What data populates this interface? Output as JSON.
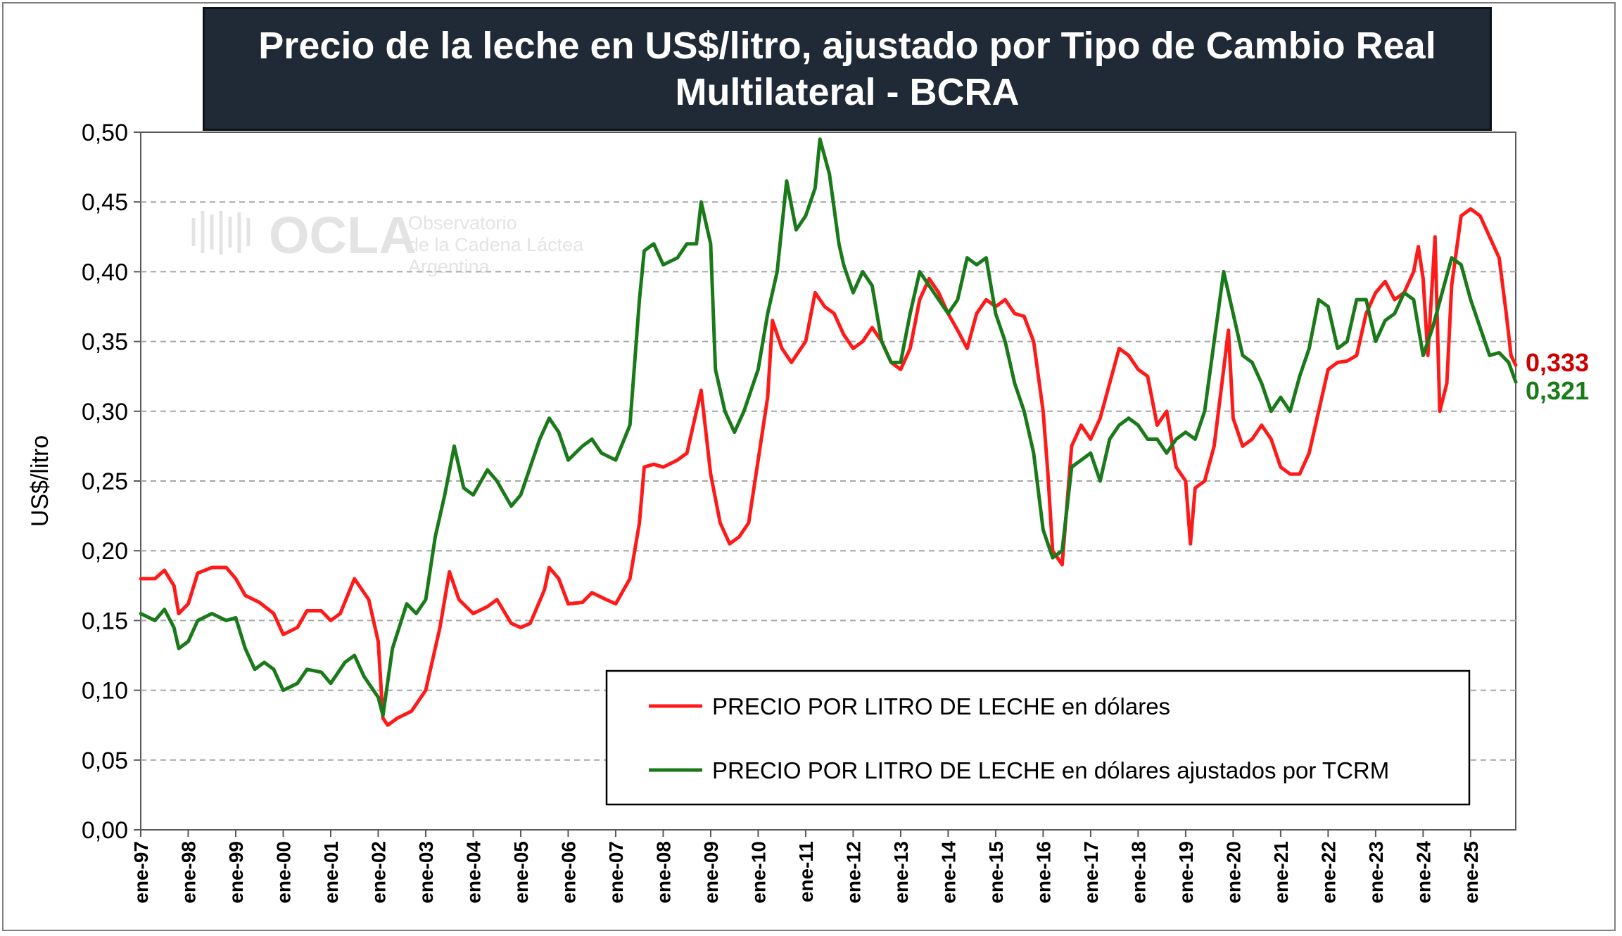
{
  "watermark": {
    "logo_text": "OCLA",
    "line1": "Observatorio",
    "line2": "de la Cadena Láctea",
    "line3": "Argentina"
  },
  "colors": {
    "usd": "#ff1a1a",
    "tcrm": "#1a7a1a",
    "title_bg": "#1f2a36",
    "grid": "#a6a6a6"
  },
  "chart_data": {
    "type": "line",
    "title_line1": "Precio de la leche en US$/litro, ajustado por Tipo de Cambio Real",
    "title_line2": "Multilateral  - BCRA",
    "ylabel": "US$/litro",
    "xlabel": "",
    "ylim": [
      0,
      0.5
    ],
    "yticks": [
      "0,00",
      "0,05",
      "0,10",
      "0,15",
      "0,20",
      "0,25",
      "0,30",
      "0,35",
      "0,40",
      "0,45",
      "0,50"
    ],
    "x_start": 1997.0,
    "x_end": 2025.95,
    "xtick_labels": [
      "ene-97",
      "ene-98",
      "ene-99",
      "ene-00",
      "ene-01",
      "ene-02",
      "ene-03",
      "ene-04",
      "ene-05",
      "ene-06",
      "ene-07",
      "ene-08",
      "ene-09",
      "ene-10",
      "ene-11",
      "ene-12",
      "ene-13",
      "ene-14",
      "ene-15",
      "ene-16",
      "ene-17",
      "ene-18",
      "ene-19",
      "ene-20",
      "ene-21",
      "ene-22",
      "ene-23",
      "ene-24",
      "ene-25"
    ],
    "legend": [
      "PRECIO POR LITRO DE LECHE en dólares",
      "PRECIO POR LITRO DE LECHE en dólares ajustados por TCRM"
    ],
    "legend_position": "bottom-right",
    "end_labels": [
      "0,333",
      "0,321"
    ],
    "series": [
      {
        "name": "PRECIO POR LITRO DE LECHE en dólares",
        "points": [
          [
            1997.0,
            0.18
          ],
          [
            1997.3,
            0.18
          ],
          [
            1997.5,
            0.186
          ],
          [
            1997.7,
            0.175
          ],
          [
            1997.8,
            0.155
          ],
          [
            1998.0,
            0.162
          ],
          [
            1998.2,
            0.184
          ],
          [
            1998.5,
            0.188
          ],
          [
            1998.8,
            0.188
          ],
          [
            1999.0,
            0.18
          ],
          [
            1999.2,
            0.168
          ],
          [
            1999.5,
            0.163
          ],
          [
            1999.8,
            0.155
          ],
          [
            2000.0,
            0.14
          ],
          [
            2000.3,
            0.145
          ],
          [
            2000.5,
            0.157
          ],
          [
            2000.8,
            0.157
          ],
          [
            2001.0,
            0.15
          ],
          [
            2001.2,
            0.155
          ],
          [
            2001.5,
            0.18
          ],
          [
            2001.8,
            0.165
          ],
          [
            2002.0,
            0.135
          ],
          [
            2002.1,
            0.08
          ],
          [
            2002.2,
            0.075
          ],
          [
            2002.4,
            0.08
          ],
          [
            2002.7,
            0.085
          ],
          [
            2003.0,
            0.1
          ],
          [
            2003.3,
            0.145
          ],
          [
            2003.5,
            0.185
          ],
          [
            2003.7,
            0.165
          ],
          [
            2004.0,
            0.155
          ],
          [
            2004.3,
            0.16
          ],
          [
            2004.5,
            0.165
          ],
          [
            2004.8,
            0.148
          ],
          [
            2005.0,
            0.145
          ],
          [
            2005.2,
            0.148
          ],
          [
            2005.5,
            0.172
          ],
          [
            2005.6,
            0.188
          ],
          [
            2005.8,
            0.18
          ],
          [
            2006.0,
            0.162
          ],
          [
            2006.3,
            0.163
          ],
          [
            2006.5,
            0.17
          ],
          [
            2006.8,
            0.165
          ],
          [
            2007.0,
            0.162
          ],
          [
            2007.3,
            0.18
          ],
          [
            2007.5,
            0.22
          ],
          [
            2007.6,
            0.26
          ],
          [
            2007.8,
            0.262
          ],
          [
            2008.0,
            0.26
          ],
          [
            2008.3,
            0.265
          ],
          [
            2008.5,
            0.27
          ],
          [
            2008.7,
            0.3
          ],
          [
            2008.8,
            0.315
          ],
          [
            2009.0,
            0.255
          ],
          [
            2009.2,
            0.22
          ],
          [
            2009.4,
            0.205
          ],
          [
            2009.6,
            0.21
          ],
          [
            2009.8,
            0.22
          ],
          [
            2010.0,
            0.265
          ],
          [
            2010.2,
            0.31
          ],
          [
            2010.3,
            0.365
          ],
          [
            2010.5,
            0.345
          ],
          [
            2010.7,
            0.335
          ],
          [
            2011.0,
            0.35
          ],
          [
            2011.2,
            0.385
          ],
          [
            2011.4,
            0.375
          ],
          [
            2011.6,
            0.37
          ],
          [
            2011.8,
            0.355
          ],
          [
            2012.0,
            0.345
          ],
          [
            2012.2,
            0.35
          ],
          [
            2012.4,
            0.36
          ],
          [
            2012.6,
            0.35
          ],
          [
            2012.8,
            0.335
          ],
          [
            2013.0,
            0.33
          ],
          [
            2013.2,
            0.345
          ],
          [
            2013.4,
            0.38
          ],
          [
            2013.6,
            0.395
          ],
          [
            2013.8,
            0.385
          ],
          [
            2014.0,
            0.37
          ],
          [
            2014.2,
            0.358
          ],
          [
            2014.4,
            0.345
          ],
          [
            2014.6,
            0.37
          ],
          [
            2014.8,
            0.38
          ],
          [
            2015.0,
            0.375
          ],
          [
            2015.2,
            0.38
          ],
          [
            2015.4,
            0.37
          ],
          [
            2015.6,
            0.368
          ],
          [
            2015.8,
            0.35
          ],
          [
            2016.0,
            0.3
          ],
          [
            2016.1,
            0.255
          ],
          [
            2016.2,
            0.2
          ],
          [
            2016.4,
            0.19
          ],
          [
            2016.6,
            0.275
          ],
          [
            2016.8,
            0.29
          ],
          [
            2017.0,
            0.28
          ],
          [
            2017.2,
            0.295
          ],
          [
            2017.4,
            0.32
          ],
          [
            2017.6,
            0.345
          ],
          [
            2017.8,
            0.34
          ],
          [
            2018.0,
            0.33
          ],
          [
            2018.2,
            0.325
          ],
          [
            2018.4,
            0.29
          ],
          [
            2018.6,
            0.3
          ],
          [
            2018.8,
            0.26
          ],
          [
            2019.0,
            0.25
          ],
          [
            2019.1,
            0.205
          ],
          [
            2019.2,
            0.245
          ],
          [
            2019.4,
            0.25
          ],
          [
            2019.6,
            0.275
          ],
          [
            2019.8,
            0.33
          ],
          [
            2019.9,
            0.358
          ],
          [
            2020.0,
            0.295
          ],
          [
            2020.2,
            0.275
          ],
          [
            2020.4,
            0.28
          ],
          [
            2020.6,
            0.29
          ],
          [
            2020.8,
            0.28
          ],
          [
            2021.0,
            0.26
          ],
          [
            2021.2,
            0.255
          ],
          [
            2021.4,
            0.255
          ],
          [
            2021.6,
            0.27
          ],
          [
            2021.8,
            0.3
          ],
          [
            2022.0,
            0.33
          ],
          [
            2022.2,
            0.335
          ],
          [
            2022.4,
            0.336
          ],
          [
            2022.6,
            0.34
          ],
          [
            2022.8,
            0.37
          ],
          [
            2023.0,
            0.385
          ],
          [
            2023.2,
            0.393
          ],
          [
            2023.4,
            0.38
          ],
          [
            2023.6,
            0.385
          ],
          [
            2023.8,
            0.4
          ],
          [
            2023.9,
            0.418
          ],
          [
            2024.0,
            0.395
          ],
          [
            2024.1,
            0.34
          ],
          [
            2024.25,
            0.425
          ],
          [
            2024.35,
            0.3
          ],
          [
            2024.5,
            0.32
          ],
          [
            2024.6,
            0.39
          ],
          [
            2024.8,
            0.44
          ],
          [
            2025.0,
            0.445
          ],
          [
            2025.2,
            0.44
          ],
          [
            2025.4,
            0.425
          ],
          [
            2025.6,
            0.41
          ],
          [
            2025.75,
            0.37
          ],
          [
            2025.85,
            0.34
          ],
          [
            2025.95,
            0.333
          ]
        ]
      },
      {
        "name": "PRECIO POR LITRO DE LECHE en dólares ajustados por TCRM",
        "points": [
          [
            1997.0,
            0.155
          ],
          [
            1997.3,
            0.15
          ],
          [
            1997.5,
            0.158
          ],
          [
            1997.7,
            0.145
          ],
          [
            1997.8,
            0.13
          ],
          [
            1998.0,
            0.135
          ],
          [
            1998.2,
            0.15
          ],
          [
            1998.5,
            0.155
          ],
          [
            1998.8,
            0.15
          ],
          [
            1999.0,
            0.152
          ],
          [
            1999.2,
            0.13
          ],
          [
            1999.4,
            0.115
          ],
          [
            1999.6,
            0.12
          ],
          [
            1999.8,
            0.115
          ],
          [
            2000.0,
            0.1
          ],
          [
            2000.3,
            0.105
          ],
          [
            2000.5,
            0.115
          ],
          [
            2000.8,
            0.113
          ],
          [
            2001.0,
            0.105
          ],
          [
            2001.3,
            0.12
          ],
          [
            2001.5,
            0.125
          ],
          [
            2001.7,
            0.11
          ],
          [
            2002.0,
            0.095
          ],
          [
            2002.1,
            0.082
          ],
          [
            2002.3,
            0.13
          ],
          [
            2002.6,
            0.162
          ],
          [
            2002.8,
            0.155
          ],
          [
            2003.0,
            0.165
          ],
          [
            2003.2,
            0.21
          ],
          [
            2003.4,
            0.24
          ],
          [
            2003.6,
            0.275
          ],
          [
            2003.8,
            0.245
          ],
          [
            2004.0,
            0.24
          ],
          [
            2004.3,
            0.258
          ],
          [
            2004.5,
            0.25
          ],
          [
            2004.8,
            0.232
          ],
          [
            2005.0,
            0.24
          ],
          [
            2005.2,
            0.26
          ],
          [
            2005.4,
            0.28
          ],
          [
            2005.6,
            0.295
          ],
          [
            2005.8,
            0.285
          ],
          [
            2006.0,
            0.265
          ],
          [
            2006.3,
            0.275
          ],
          [
            2006.5,
            0.28
          ],
          [
            2006.7,
            0.27
          ],
          [
            2007.0,
            0.265
          ],
          [
            2007.3,
            0.29
          ],
          [
            2007.5,
            0.38
          ],
          [
            2007.6,
            0.415
          ],
          [
            2007.8,
            0.42
          ],
          [
            2008.0,
            0.405
          ],
          [
            2008.3,
            0.41
          ],
          [
            2008.5,
            0.42
          ],
          [
            2008.7,
            0.42
          ],
          [
            2008.8,
            0.45
          ],
          [
            2009.0,
            0.42
          ],
          [
            2009.1,
            0.33
          ],
          [
            2009.3,
            0.3
          ],
          [
            2009.5,
            0.285
          ],
          [
            2009.7,
            0.3
          ],
          [
            2010.0,
            0.33
          ],
          [
            2010.2,
            0.37
          ],
          [
            2010.4,
            0.4
          ],
          [
            2010.6,
            0.465
          ],
          [
            2010.8,
            0.43
          ],
          [
            2011.0,
            0.44
          ],
          [
            2011.2,
            0.46
          ],
          [
            2011.3,
            0.495
          ],
          [
            2011.5,
            0.47
          ],
          [
            2011.7,
            0.42
          ],
          [
            2011.8,
            0.405
          ],
          [
            2012.0,
            0.385
          ],
          [
            2012.2,
            0.4
          ],
          [
            2012.4,
            0.39
          ],
          [
            2012.6,
            0.35
          ],
          [
            2012.8,
            0.335
          ],
          [
            2013.0,
            0.335
          ],
          [
            2013.2,
            0.37
          ],
          [
            2013.4,
            0.4
          ],
          [
            2013.6,
            0.39
          ],
          [
            2013.8,
            0.38
          ],
          [
            2014.0,
            0.37
          ],
          [
            2014.2,
            0.38
          ],
          [
            2014.4,
            0.41
          ],
          [
            2014.6,
            0.405
          ],
          [
            2014.8,
            0.41
          ],
          [
            2015.0,
            0.37
          ],
          [
            2015.2,
            0.35
          ],
          [
            2015.4,
            0.32
          ],
          [
            2015.6,
            0.3
          ],
          [
            2015.8,
            0.27
          ],
          [
            2016.0,
            0.215
          ],
          [
            2016.2,
            0.195
          ],
          [
            2016.4,
            0.2
          ],
          [
            2016.6,
            0.26
          ],
          [
            2016.8,
            0.265
          ],
          [
            2017.0,
            0.27
          ],
          [
            2017.2,
            0.25
          ],
          [
            2017.4,
            0.28
          ],
          [
            2017.6,
            0.29
          ],
          [
            2017.8,
            0.295
          ],
          [
            2018.0,
            0.29
          ],
          [
            2018.2,
            0.28
          ],
          [
            2018.4,
            0.28
          ],
          [
            2018.6,
            0.27
          ],
          [
            2018.8,
            0.28
          ],
          [
            2019.0,
            0.285
          ],
          [
            2019.2,
            0.28
          ],
          [
            2019.4,
            0.3
          ],
          [
            2019.6,
            0.35
          ],
          [
            2019.8,
            0.4
          ],
          [
            2020.0,
            0.37
          ],
          [
            2020.2,
            0.34
          ],
          [
            2020.4,
            0.335
          ],
          [
            2020.6,
            0.32
          ],
          [
            2020.8,
            0.3
          ],
          [
            2021.0,
            0.31
          ],
          [
            2021.2,
            0.3
          ],
          [
            2021.4,
            0.325
          ],
          [
            2021.6,
            0.345
          ],
          [
            2021.8,
            0.38
          ],
          [
            2022.0,
            0.375
          ],
          [
            2022.2,
            0.345
          ],
          [
            2022.4,
            0.35
          ],
          [
            2022.6,
            0.38
          ],
          [
            2022.8,
            0.38
          ],
          [
            2023.0,
            0.35
          ],
          [
            2023.2,
            0.365
          ],
          [
            2023.4,
            0.37
          ],
          [
            2023.6,
            0.385
          ],
          [
            2023.8,
            0.38
          ],
          [
            2024.0,
            0.34
          ],
          [
            2024.2,
            0.36
          ],
          [
            2024.4,
            0.385
          ],
          [
            2024.6,
            0.41
          ],
          [
            2024.8,
            0.405
          ],
          [
            2025.0,
            0.38
          ],
          [
            2025.2,
            0.36
          ],
          [
            2025.4,
            0.34
          ],
          [
            2025.6,
            0.342
          ],
          [
            2025.8,
            0.335
          ],
          [
            2025.95,
            0.321
          ]
        ]
      }
    ]
  }
}
